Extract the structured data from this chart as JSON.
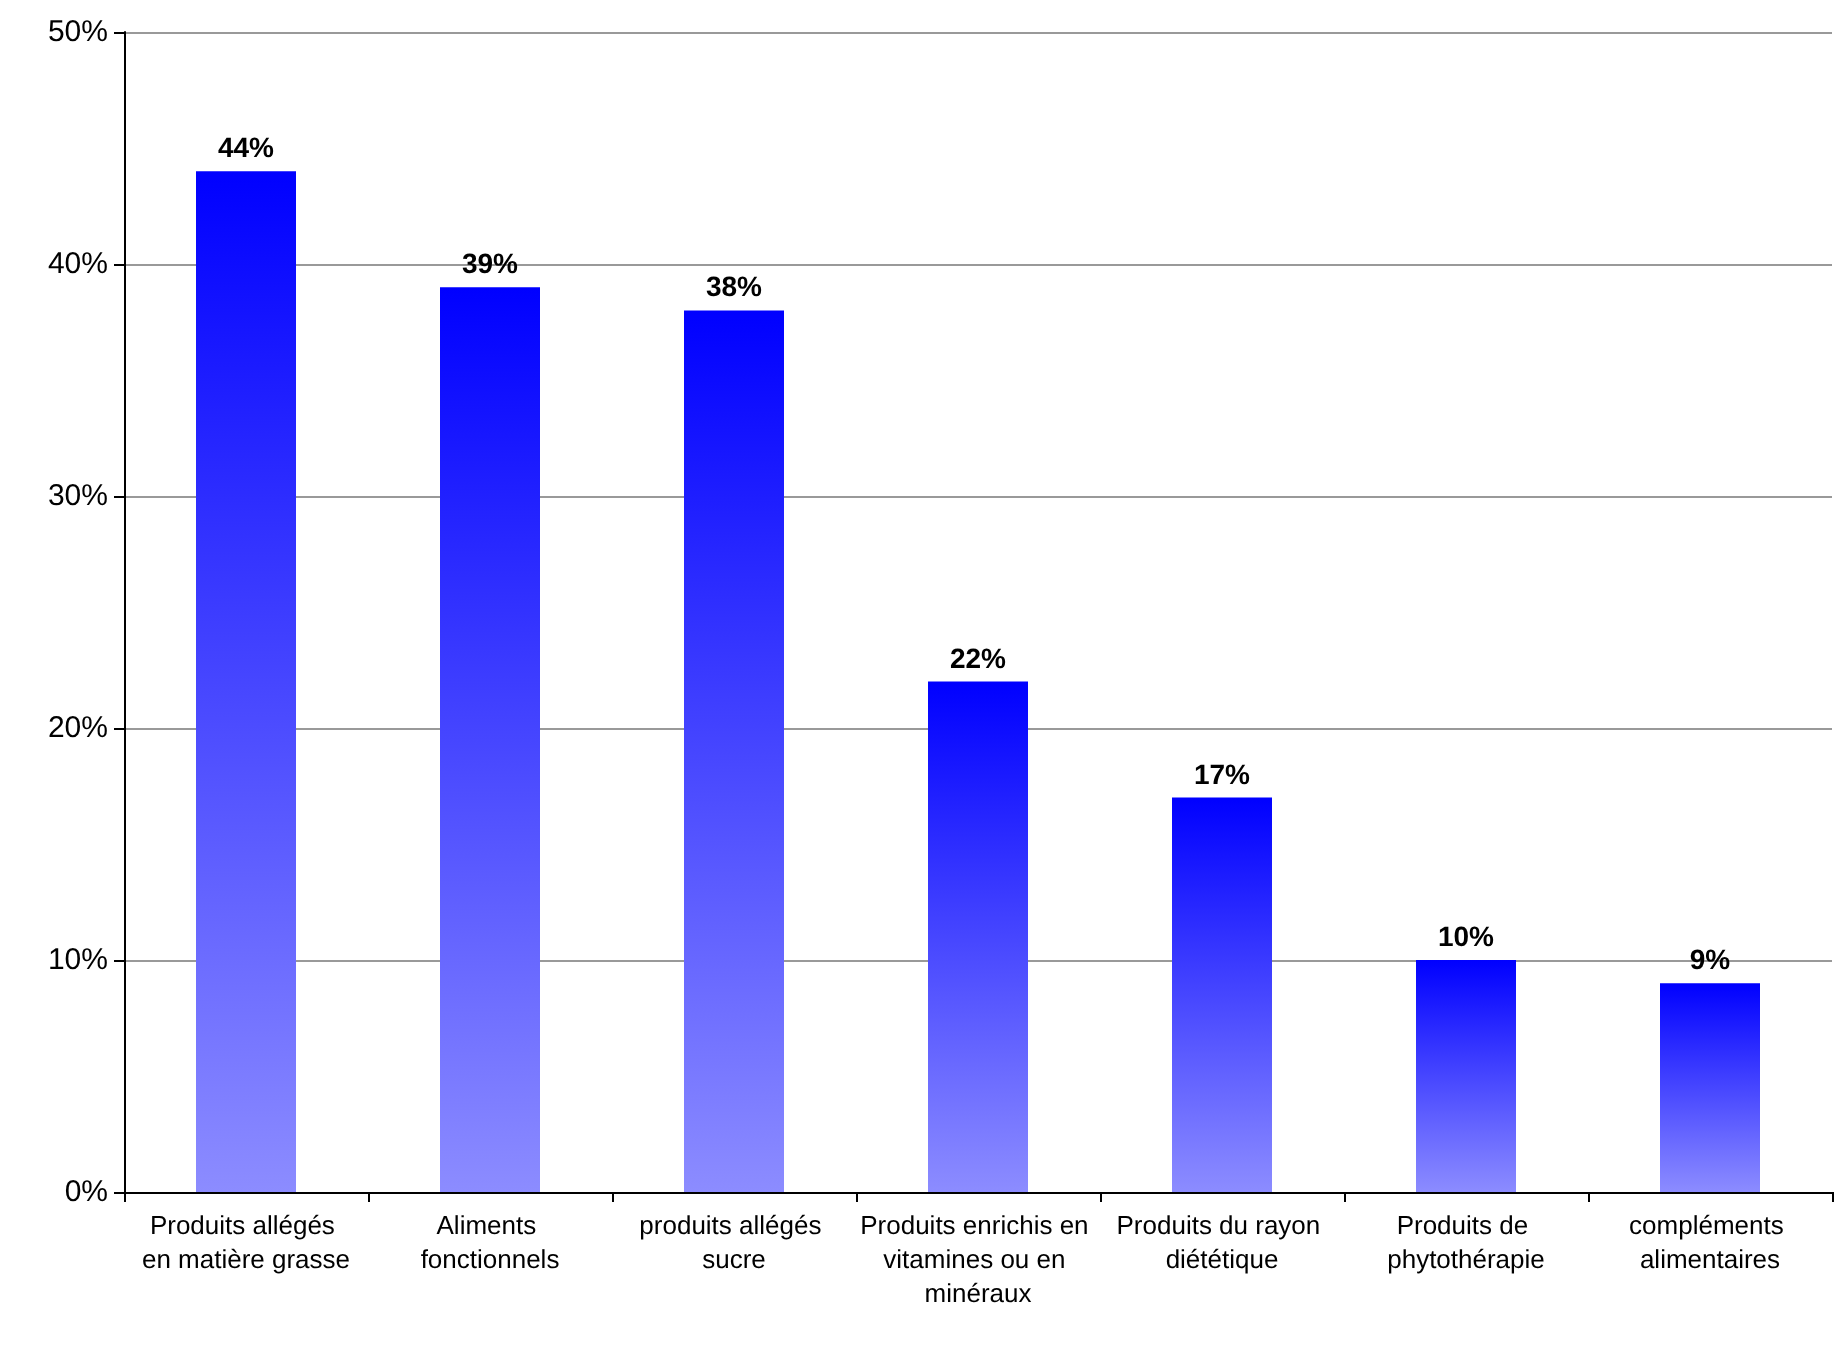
{
  "chart_data": {
    "type": "bar",
    "categories": [
      "Produits allégés en matière grasse",
      "Aliments fonctionnels",
      "produits allégés sucre",
      "Produits enrichis en vitamines ou en minéraux",
      "Produits du rayon diététique",
      "Produits de phytothérapie",
      "compléments alimentaires"
    ],
    "values": [
      44,
      39,
      38,
      22,
      17,
      10,
      9
    ],
    "value_labels": [
      "44%",
      "39%",
      "38%",
      "22%",
      "17%",
      "10%",
      "9%"
    ],
    "color": "#0000ff",
    "ylim": [
      0,
      50
    ],
    "yticks": [
      {
        "value": 0,
        "label": "0%"
      },
      {
        "value": 10,
        "label": "10%"
      },
      {
        "value": 20,
        "label": "20%"
      },
      {
        "value": 30,
        "label": "30%"
      },
      {
        "value": 40,
        "label": "40%"
      },
      {
        "value": 50,
        "label": "50%"
      }
    ],
    "grid": "y"
  }
}
